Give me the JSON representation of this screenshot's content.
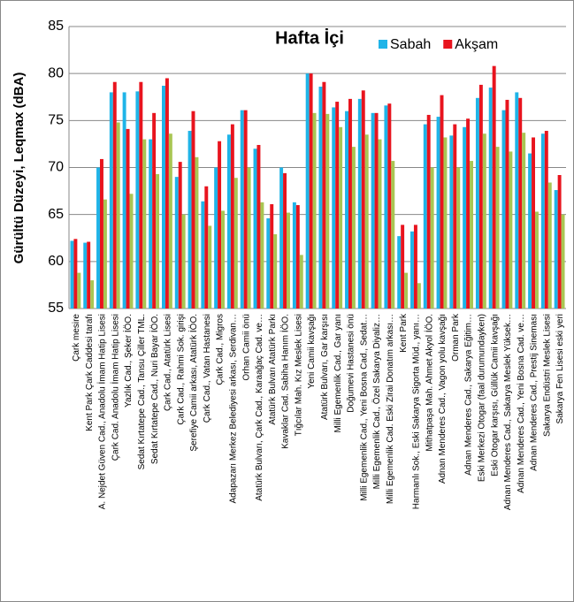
{
  "chart_data": {
    "type": "bar",
    "title": "Hafta İçi",
    "ylabel": "Gürültü Düzeyi, Leqmax (dBA)",
    "categories": [
      "Çark mesire",
      "Kent Park Çark Caddesi tarafı",
      "A. Nejdet Güven Cad., Anadolu İmam Hatip Lisesi",
      "Çark Cad. Anadolu İmam Hatip Lisesi",
      "Yazlık Cad., Şeker İÖO.",
      "Sedat Kırtatepe Cad., Tansu Çiller TML.",
      "Sedat Kırtatepe Cad., Nuri Bayar İÖO.",
      "Çark Cad., Atatürk Lisesi",
      "Çark Cad., Rahmi Sok. girişi",
      "Şerefiye Camii arkası, Atatürk İÖO.",
      "Çark Cad., Vatan Hastanesi",
      "Çark Cad., Migros",
      "Adapazarı Merkez Belediyesi arkası, Serdivan…",
      "Orhan Camii önü",
      "Atatürk Bulvarı, Çark Cad., Karaağaç Cad. ve…",
      "Atatürk Bulvarı Atatürk Parkı",
      "Kavaklar Cad. Sabiha Hanım İÖO.",
      "Tığcılar Mah. Kız Meslek Lisesi",
      "Yeni Camii kavşağı",
      "Atatürk Bulvarı, Gar karşısı",
      "Milli Egemenlik Cad., Gar yanı",
      "Doğumevi Hastanesi önü",
      "Milli Egemenlik Cad., Yeni Bosna Cad., Sedat…",
      "Milli Egemenlik Cad., Özel Sakarya Diyaliz…",
      "Milli Egemenlik Cad. Eski Zirai Donatım arkası…",
      "Kent Park",
      "Harmanlı Sok., Eski Sakarya Sigorta Müd., yanı…",
      "Mithatpaşa Mah. Ahmet Akyol İÖO.",
      "Adnan Menderes Cad., Vagon yolu kavşağı",
      "Orman Park",
      "Adnan Menderes Cad., Sakarya Eğitim…",
      "Eski Merkezi Otogar (faal durumundayken)",
      "Eski Otogar karşısı, Güllük Camii kavşağı",
      "Adnan Menderes Cad., Sakarya Meslek Yüksek…",
      "Adnan Menderes Cad., Yeni Bosna Cad. ve…",
      "Adnan Menderes Cad., Prestij Sineması",
      "Sakarya Endüstri Meslek Lisesi",
      "Sakarya Fen Lisesi eski yeri"
    ],
    "series": [
      {
        "name": "Sabah",
        "color": "#1fb4e8",
        "values": [
          62.2,
          62,
          70,
          78,
          78,
          78.1,
          73,
          78.7,
          69,
          73.9,
          66.4,
          70,
          73.5,
          76.1,
          72,
          64.6,
          70,
          66.3,
          80,
          78.6,
          76.4,
          76,
          77.3,
          75.8,
          76.6,
          62.7,
          63.2,
          74.6,
          75.4,
          73.4,
          74.3,
          77.4,
          78.5,
          76.1,
          78,
          71.5,
          73.6,
          67.6
        ]
      },
      {
        "name": "Akşam",
        "color": "#e8141e",
        "values": [
          62.4,
          62.1,
          70.9,
          79.1,
          74.1,
          79.1,
          75.8,
          79.5,
          70.6,
          76,
          68,
          72.8,
          74.6,
          76.1,
          72.4,
          66.1,
          69.4,
          66,
          80,
          79.1,
          77,
          77.3,
          78.2,
          75.8,
          76.8,
          63.9,
          63.9,
          75.6,
          77.7,
          74.6,
          75.2,
          78.8,
          80.8,
          77.2,
          77.4,
          73.2,
          73.9,
          69.2
        ]
      },
      {
        "color": "#a9c653",
        "values": [
          58.8,
          58,
          66.6,
          74.8,
          67.2,
          73,
          69.3,
          73.6,
          65,
          71.1,
          63.8,
          65.4,
          68.9,
          70,
          66.3,
          62.9,
          65.2,
          60.7,
          75.8,
          75.7,
          74.3,
          72.2,
          73.5,
          73,
          70.7,
          58.8,
          57.7,
          70,
          73.2,
          70,
          70.7,
          73.6,
          72.2,
          71.7,
          73.7,
          65.3,
          68.4,
          65
        ]
      }
    ],
    "ylim": [
      55,
      85
    ],
    "yticks": [
      55,
      60,
      65,
      70,
      75,
      80,
      85
    ],
    "grid": true,
    "legend": "top-right"
  }
}
